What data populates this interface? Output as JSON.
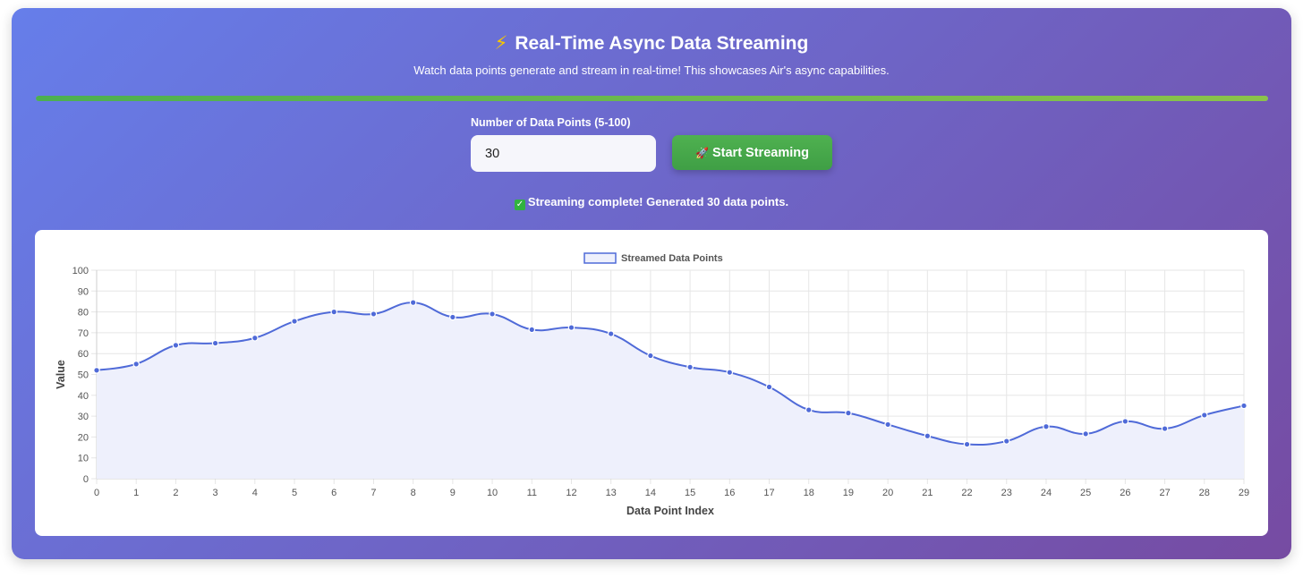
{
  "header": {
    "icon": "lightning-icon",
    "title": "Real-Time Async Data Streaming",
    "subtitle": "Watch data points generate and stream in real-time! This showcases Air's async capabilities."
  },
  "progress": {
    "percent": 100,
    "color_start": "#4caf50",
    "color_end": "#8bc34a"
  },
  "form": {
    "label": "Number of Data Points (5-100)",
    "value": "30",
    "button_icon": "rocket-icon",
    "button_label": "Start Streaming"
  },
  "status": {
    "icon": "check-icon",
    "text": "Streaming complete! Generated 30 data points."
  },
  "colors": {
    "gradient_start": "#667eea",
    "gradient_end": "#764ba2",
    "button": "#45a849",
    "series_line": "#4f6ad8",
    "series_fill": "#eef0fc"
  },
  "chart_data": {
    "type": "line",
    "xlabel": "Data Point Index",
    "ylabel": "Value",
    "ylim": [
      0,
      100
    ],
    "yticks": [
      0,
      10,
      20,
      30,
      40,
      50,
      60,
      70,
      80,
      90,
      100
    ],
    "grid": true,
    "legend_position": "top-center",
    "x": [
      0,
      1,
      2,
      3,
      4,
      5,
      6,
      7,
      8,
      9,
      10,
      11,
      12,
      13,
      14,
      15,
      16,
      17,
      18,
      19,
      20,
      21,
      22,
      23,
      24,
      25,
      26,
      27,
      28,
      29
    ],
    "series": [
      {
        "name": "Streamed Data Points",
        "values": [
          52,
          55,
          64,
          65,
          67.5,
          75.5,
          80,
          79,
          84.5,
          77.5,
          79,
          71.5,
          72.5,
          69.5,
          59,
          53.5,
          51,
          44,
          33,
          31.5,
          26,
          20.5,
          16.5,
          18,
          25,
          21.5,
          27.5,
          24,
          30.5,
          35
        ]
      }
    ]
  }
}
